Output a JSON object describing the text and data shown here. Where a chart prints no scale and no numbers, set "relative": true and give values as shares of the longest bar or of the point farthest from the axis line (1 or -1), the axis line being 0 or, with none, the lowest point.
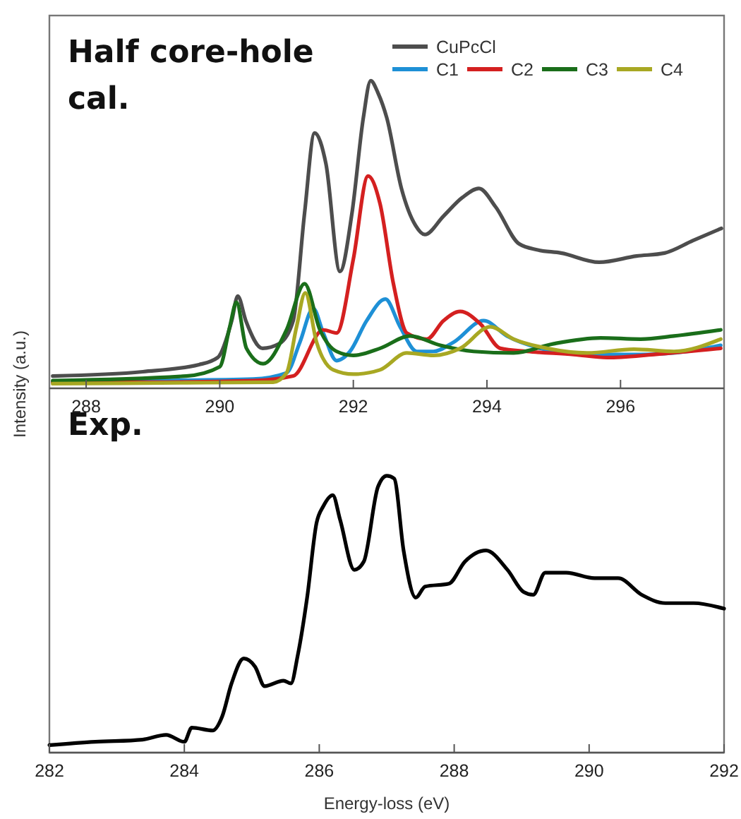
{
  "chart_data": [
    {
      "type": "line",
      "title": "Half core-hole cal.",
      "ylabel": "Intensity (a.u.)",
      "relative": true,
      "legend": "top right",
      "xlim": [
        287.45,
        297.55
      ],
      "xticks": [
        288,
        290,
        292,
        294,
        296
      ],
      "series": [
        {
          "name": "CuPcCl",
          "color": "#4d4d4d",
          "x": [
            287.5,
            288.85,
            289.69,
            289.97,
            290.18,
            290.27,
            290.39,
            290.64,
            290.89,
            291.1,
            291.27,
            291.42,
            291.59,
            291.8,
            291.98,
            292.15,
            292.26,
            292.37,
            292.5,
            292.72,
            292.93,
            293.07,
            293.35,
            293.63,
            293.88,
            294.13,
            294.48,
            294.76,
            295.11,
            295.68,
            296.24,
            296.66,
            297.08,
            297.51
          ],
          "values": [
            0.04,
            0.054,
            0.077,
            0.1,
            0.22,
            0.3,
            0.22,
            0.13,
            0.145,
            0.22,
            0.57,
            0.83,
            0.73,
            0.38,
            0.57,
            0.88,
            1,
            0.96,
            0.88,
            0.65,
            0.53,
            0.5,
            0.56,
            0.62,
            0.65,
            0.59,
            0.47,
            0.45,
            0.44,
            0.41,
            0.43,
            0.44,
            0.48,
            0.52
          ]
        },
        {
          "name": "C1",
          "color": "#1e90d6",
          "x": [
            287.5,
            289,
            290.5,
            291,
            291.2,
            291.4,
            291.55,
            291.75,
            291.95,
            292.2,
            292.48,
            292.7,
            292.95,
            293.2,
            293.5,
            293.95,
            294.3,
            294.8,
            295.5,
            296.3,
            297,
            297.5
          ],
          "values": [
            0.02,
            0.025,
            0.03,
            0.05,
            0.15,
            0.26,
            0.18,
            0.09,
            0.12,
            0.22,
            0.29,
            0.2,
            0.12,
            0.12,
            0.15,
            0.22,
            0.17,
            0.13,
            0.11,
            0.11,
            0.12,
            0.14
          ]
        },
        {
          "name": "C2",
          "color": "#d42020",
          "x": [
            287.5,
            289,
            290.5,
            291.1,
            291.55,
            291.75,
            292,
            292.22,
            292.4,
            292.6,
            292.8,
            293.1,
            293.35,
            293.6,
            293.9,
            294.2,
            294.6,
            295.3,
            295.8,
            296.5,
            297.5
          ],
          "values": [
            0.02,
            0.02,
            0.025,
            0.04,
            0.19,
            0.18,
            0.42,
            0.69,
            0.6,
            0.34,
            0.18,
            0.16,
            0.22,
            0.25,
            0.21,
            0.13,
            0.12,
            0.11,
            0.1,
            0.11,
            0.13
          ]
        },
        {
          "name": "C3",
          "color": "#1a6e1a",
          "x": [
            287.5,
            289.5,
            290,
            290.15,
            290.25,
            290.4,
            290.65,
            291,
            291.27,
            291.5,
            291.75,
            292,
            292.4,
            292.85,
            293.3,
            293.8,
            294.4,
            295,
            295.7,
            296.3,
            296.8,
            297.5
          ],
          "values": [
            0.025,
            0.04,
            0.07,
            0.2,
            0.28,
            0.13,
            0.08,
            0.19,
            0.34,
            0.19,
            0.12,
            0.107,
            0.13,
            0.17,
            0.14,
            0.12,
            0.115,
            0.145,
            0.164,
            0.16,
            0.17,
            0.19
          ]
        },
        {
          "name": "C4",
          "color": "#a8a823",
          "x": [
            287.5,
            289.5,
            290.8,
            291,
            291.15,
            291.28,
            291.45,
            291.7,
            292,
            292.4,
            292.8,
            293.2,
            293.6,
            294.05,
            294.4,
            294.9,
            295.5,
            296.2,
            296.8,
            297.5
          ],
          "values": [
            0.015,
            0.018,
            0.02,
            0.05,
            0.2,
            0.31,
            0.15,
            0.06,
            0.046,
            0.06,
            0.115,
            0.107,
            0.13,
            0.2,
            0.16,
            0.13,
            0.115,
            0.127,
            0.12,
            0.16
          ]
        }
      ]
    },
    {
      "type": "line",
      "title": "Exp.",
      "xlabel": "Energy-loss (eV)",
      "relative": true,
      "xlim": [
        282,
        292
      ],
      "xticks": [
        282,
        284,
        286,
        288,
        290,
        292
      ],
      "series": [
        {
          "color": "#000000",
          "x": [
            282,
            282.68,
            283.38,
            283.73,
            284,
            284.11,
            284.42,
            284.56,
            284.7,
            284.88,
            285.05,
            285.19,
            285.47,
            285.58,
            285.68,
            285.82,
            285.96,
            286.06,
            286.2,
            286.31,
            286.52,
            286.66,
            286.87,
            287,
            287.11,
            287.25,
            287.43,
            287.57,
            287.92,
            288.16,
            288.47,
            288.79,
            289.03,
            289.17,
            289.35,
            289.66,
            290.08,
            290.43,
            290.78,
            291.13,
            291.55,
            292
          ],
          "values": [
            0.027,
            0.039,
            0.047,
            0.064,
            0.039,
            0.09,
            0.08,
            0.13,
            0.25,
            0.34,
            0.31,
            0.24,
            0.26,
            0.25,
            0.35,
            0.56,
            0.83,
            0.89,
            0.93,
            0.84,
            0.66,
            0.69,
            0.96,
            1,
            0.99,
            0.73,
            0.56,
            0.6,
            0.61,
            0.69,
            0.73,
            0.66,
            0.58,
            0.57,
            0.65,
            0.65,
            0.63,
            0.63,
            0.57,
            0.54,
            0.54,
            0.52
          ]
        }
      ]
    }
  ]
}
